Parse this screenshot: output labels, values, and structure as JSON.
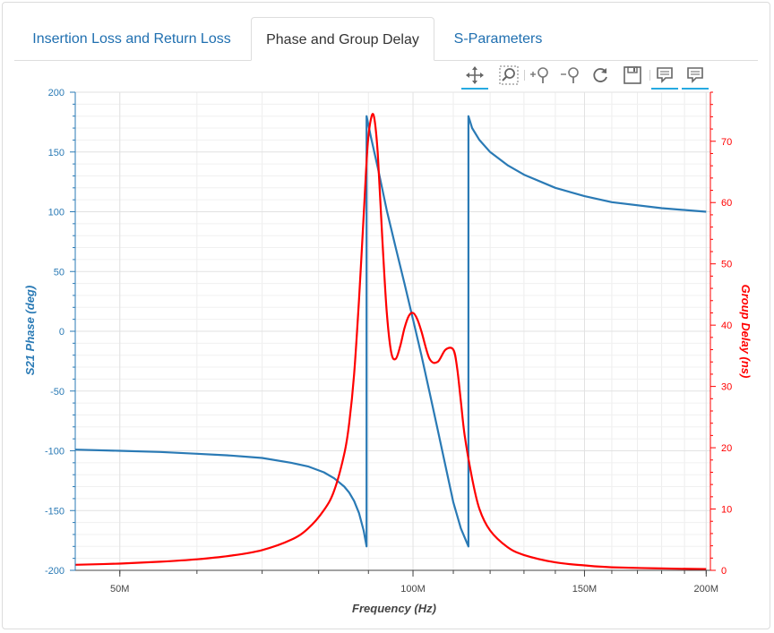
{
  "tabs": [
    {
      "label": "Insertion Loss and Return Loss",
      "active": false
    },
    {
      "label": "Phase and Group Delay",
      "active": true
    },
    {
      "label": "S-Parameters",
      "active": false
    }
  ],
  "toolbar": {
    "tools": [
      "pan-icon",
      "box-zoom-icon",
      "zoom-in-icon",
      "zoom-out-icon",
      "reset-icon",
      "save-icon",
      "hover-icon",
      "hover-icon"
    ]
  },
  "colors": {
    "tab_text": "#1f6fb0",
    "phase": "#2a7ab5",
    "group_delay": "#ff0000",
    "tool_active": "#26aae1"
  },
  "chart_data": {
    "type": "line",
    "xlabel": "Frequency (Hz)",
    "x_scale": "log",
    "xlim": [
      45000000,
      202000000
    ],
    "x_tick_labels": [
      {
        "value": 50000000,
        "label": "50M"
      },
      {
        "value": 100000000,
        "label": "100M"
      },
      {
        "value": 150000000,
        "label": "150M"
      },
      {
        "value": 200000000,
        "label": "200M"
      }
    ],
    "y_left": {
      "label": "S21 Phase (deg)",
      "range": [
        -200,
        200
      ],
      "ticks": [
        -200,
        -150,
        -100,
        -50,
        0,
        50,
        100,
        150,
        200
      ]
    },
    "y_right": {
      "label": "Group Delay (ns)",
      "range": [
        0,
        78
      ],
      "ticks": [
        0,
        10,
        20,
        30,
        40,
        50,
        60,
        70
      ]
    },
    "grid": true,
    "series": [
      {
        "name": "S21 Phase",
        "axis": "left",
        "x": [
          45000000,
          50000000,
          55000000,
          60000000,
          65000000,
          70000000,
          75000000,
          78000000,
          81000000,
          83000000,
          85000000,
          86000000,
          87000000,
          88000000,
          89000000,
          89600000,
          89600000,
          90500000,
          92000000,
          94000000,
          96000000,
          98000000,
          100000000,
          102000000,
          104000000,
          106000000,
          108000000,
          110000000,
          112000000,
          114000000,
          114000000,
          115000000,
          117000000,
          120000000,
          125000000,
          130000000,
          140000000,
          150000000,
          160000000,
          180000000,
          200000000
        ],
        "y": [
          -99,
          -100,
          -101,
          -102.5,
          -104,
          -106,
          -110,
          -113,
          -118,
          -123,
          -130,
          -135,
          -142,
          -152,
          -167,
          -180,
          180,
          163,
          137,
          101,
          70,
          40,
          10,
          -20,
          -51,
          -82,
          -113,
          -143,
          -165,
          -180,
          180,
          170,
          160,
          150,
          139,
          131,
          120,
          113,
          108,
          103,
          100
        ]
      },
      {
        "name": "Group Delay",
        "axis": "right",
        "x": [
          45000000,
          50000000,
          55000000,
          60000000,
          65000000,
          70000000,
          75000000,
          78000000,
          81000000,
          83000000,
          85000000,
          86000000,
          87000000,
          88000000,
          89000000,
          89800000,
          90500000,
          91200000,
          92000000,
          93000000,
          94000000,
          95000000,
          96000000,
          97000000,
          98000000,
          99000000,
          100000000,
          101000000,
          102000000,
          104000000,
          106000000,
          108000000,
          110000000,
          111000000,
          112000000,
          113000000,
          115000000,
          117000000,
          120000000,
          125000000,
          130000000,
          140000000,
          150000000,
          160000000,
          180000000,
          200000000
        ],
        "y": [
          0.9,
          1.1,
          1.4,
          1.8,
          2.4,
          3.3,
          5,
          6.8,
          9.8,
          13,
          19,
          24,
          32,
          44,
          58,
          69,
          73.5,
          74,
          68,
          54,
          42,
          35.5,
          34.5,
          36.5,
          39.5,
          41.5,
          42,
          41,
          39,
          34.5,
          34,
          36,
          36,
          33,
          27.5,
          22,
          15,
          10,
          6.5,
          3.8,
          2.5,
          1.3,
          0.8,
          0.5,
          0.3,
          0.2
        ]
      }
    ]
  }
}
